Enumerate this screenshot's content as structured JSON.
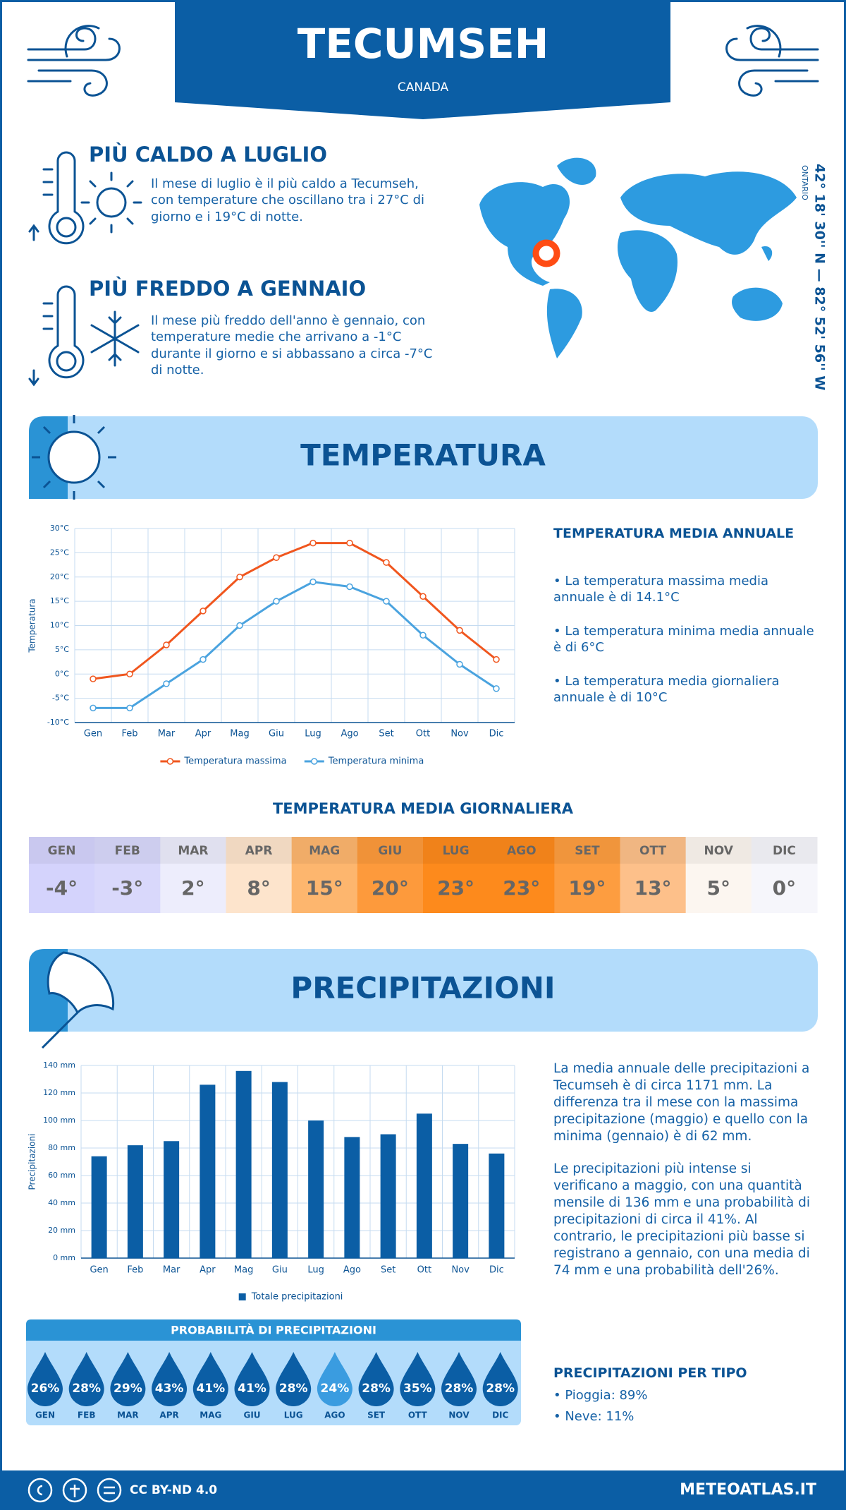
{
  "header": {
    "title": "TECUMSEH",
    "country": "CANADA",
    "region": "ONTARIO",
    "coordinates": "42° 18' 30'' N — 82° 52' 56'' W"
  },
  "warmest": {
    "title": "PIÙ CALDO A LUGLIO",
    "text": "Il mese di luglio è il più caldo a Tecumseh, con temperature che oscillano tra i 27°C di giorno e i 19°C di notte."
  },
  "coldest": {
    "title": "PIÙ FREDDO A GENNAIO",
    "text": "Il mese più freddo dell'anno è gennaio, con temperature medie che arrivano a -1°C durante il giorno e si abbassano a circa -7°C di notte."
  },
  "temperature_section": {
    "title": "TEMPERATURA",
    "annual_title": "TEMPERATURA MEDIA ANNUALE",
    "bullets": [
      "• La temperatura massima media annuale è di 14.1°C",
      "• La temperatura minima media annuale è di 6°C",
      "• La temperatura media giornaliera annuale è di 10°C"
    ]
  },
  "chart_data": [
    {
      "type": "line",
      "y_label": "Temperatura",
      "categories": [
        "Gen",
        "Feb",
        "Mar",
        "Apr",
        "Mag",
        "Giu",
        "Lug",
        "Ago",
        "Set",
        "Ott",
        "Nov",
        "Dic"
      ],
      "series": [
        {
          "name": "Temperatura massima",
          "color": "#f0561e",
          "values": [
            -1,
            0,
            6,
            13,
            20,
            24,
            27,
            27,
            23,
            16,
            9,
            3
          ]
        },
        {
          "name": "Temperatura minima",
          "color": "#4aa3df",
          "values": [
            -7,
            -7,
            -2,
            3,
            10,
            15,
            19,
            18,
            15,
            8,
            2,
            -3
          ]
        }
      ],
      "ylim": [
        -10,
        30
      ],
      "yticks": [
        {
          "value": -10,
          "label": "-10°C"
        },
        {
          "value": -5,
          "label": "-5°C"
        },
        {
          "value": 0,
          "label": "0°C"
        },
        {
          "value": 5,
          "label": "5°C"
        },
        {
          "value": 10,
          "label": "10°C"
        },
        {
          "value": 15,
          "label": "15°C"
        },
        {
          "value": 20,
          "label": "20°C"
        },
        {
          "value": 25,
          "label": "25°C"
        },
        {
          "value": 30,
          "label": "30°C"
        }
      ],
      "grid": true,
      "legend": "bottom"
    },
    {
      "type": "bar",
      "y_label": "Precipitazioni",
      "categories": [
        "Gen",
        "Feb",
        "Mar",
        "Apr",
        "Mag",
        "Giu",
        "Lug",
        "Ago",
        "Set",
        "Ott",
        "Nov",
        "Dic"
      ],
      "series": [
        {
          "name": "Totale precipitazioni",
          "color": "#0b5ea5",
          "values": [
            74,
            82,
            85,
            126,
            136,
            128,
            100,
            88,
            90,
            105,
            83,
            76
          ]
        }
      ],
      "ylim": [
        0,
        140
      ],
      "yticks": [
        {
          "value": 0,
          "label": "0 mm"
        },
        {
          "value": 20,
          "label": "20 mm"
        },
        {
          "value": 40,
          "label": "40 mm"
        },
        {
          "value": 60,
          "label": "60 mm"
        },
        {
          "value": 80,
          "label": "80 mm"
        },
        {
          "value": 100,
          "label": "100 mm"
        },
        {
          "value": 120,
          "label": "120 mm"
        },
        {
          "value": 140,
          "label": "140 mm"
        }
      ],
      "grid": true,
      "legend": "bottom"
    }
  ],
  "daily_temperature": {
    "title": "TEMPERATURA MEDIA GIORNALIERA",
    "months": [
      "GEN",
      "FEB",
      "MAR",
      "APR",
      "MAG",
      "GIU",
      "LUG",
      "AGO",
      "SET",
      "OTT",
      "NOV",
      "DIC"
    ],
    "values": [
      -4,
      -3,
      2,
      8,
      15,
      20,
      23,
      23,
      19,
      13,
      5,
      0
    ],
    "value_labels": [
      "-4°",
      "-3°",
      "2°",
      "8°",
      "15°",
      "20°",
      "23°",
      "23°",
      "19°",
      "13°",
      "5°",
      "0°"
    ],
    "colors": [
      "#d4d3fc",
      "#d9d8fb",
      "#ededfc",
      "#fde4cc",
      "#fdb66e",
      "#fd9a3c",
      "#fd8a1c",
      "#fd8a1c",
      "#fd9d40",
      "#fdc08a",
      "#fcf6f0",
      "#f6f6fb"
    ]
  },
  "precipitation_section": {
    "title": "PRECIPITAZIONI",
    "paragraphs": [
      "La media annuale delle precipitazioni a Tecumseh è di circa 1171 mm. La differenza tra il mese con la massima precipitazione (maggio) e quello con la minima (gennaio) è di 62 mm.",
      "Le precipitazioni più intense si verificano a maggio, con una quantità mensile di 136 mm e una probabilità di precipitazioni di circa il 41%. Al contrario, le precipitazioni più basse si registrano a gennaio, con una media di 74 mm e una probabilità dell'26%."
    ]
  },
  "precipitation_probability": {
    "title": "PROBABILITÀ DI PRECIPITAZIONI",
    "months": [
      "GEN",
      "FEB",
      "MAR",
      "APR",
      "MAG",
      "GIU",
      "LUG",
      "AGO",
      "SET",
      "OTT",
      "NOV",
      "DIC"
    ],
    "values": [
      26,
      28,
      29,
      43,
      41,
      41,
      28,
      24,
      28,
      35,
      28,
      28
    ],
    "value_labels": [
      "26%",
      "28%",
      "29%",
      "43%",
      "41%",
      "41%",
      "28%",
      "24%",
      "28%",
      "35%",
      "28%",
      "28%"
    ],
    "colors": [
      "#0b5ea5",
      "#0b5ea5",
      "#0b5ea5",
      "#0b5ea5",
      "#0b5ea5",
      "#0b5ea5",
      "#0b5ea5",
      "#3a9ce0",
      "#0b5ea5",
      "#0b5ea5",
      "#0b5ea5",
      "#0b5ea5"
    ]
  },
  "precipitation_type": {
    "title": "PRECIPITAZIONI PER TIPO",
    "items": [
      "• Pioggia: 89%",
      "• Neve: 11%"
    ]
  },
  "footer": {
    "license": "CC BY-ND 4.0",
    "site": "METEOATLAS.IT"
  }
}
